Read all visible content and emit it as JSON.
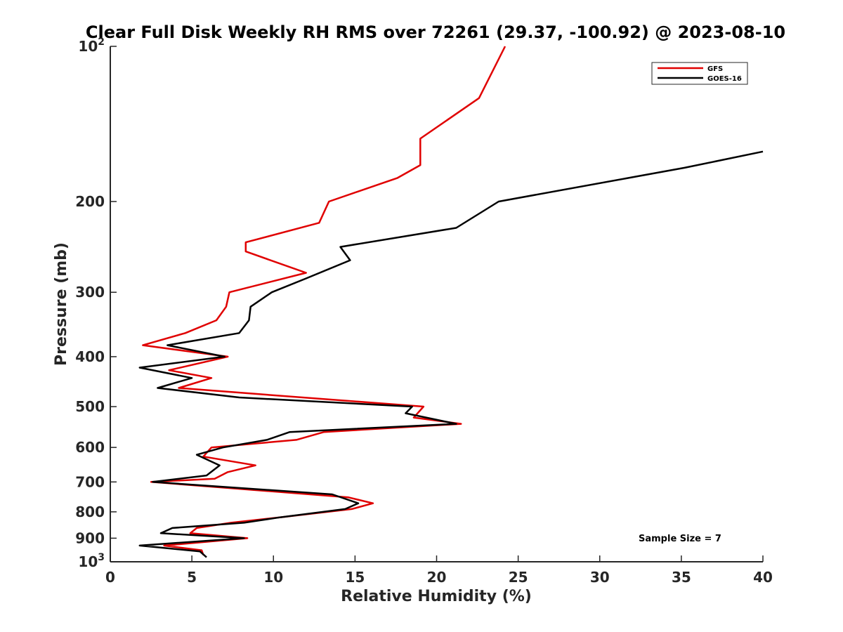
{
  "chart_data": {
    "type": "line",
    "title": "Clear Full Disk Weekly RH RMS over 72261 (29.37, -100.92) @ 2023-08-10",
    "xlabel": "Relative Humidity (%)",
    "ylabel": "Pressure (mb)",
    "xlim": [
      0,
      40
    ],
    "ylim": [
      100,
      1000
    ],
    "yscale": "log",
    "y_reversed": true,
    "grid": false,
    "legend_position": "top-right",
    "x_ticks": [
      "0",
      "5",
      "10",
      "15",
      "20",
      "25",
      "30",
      "35",
      "40"
    ],
    "y_ticks": [
      {
        "value": 100,
        "base": "10",
        "exp": "2"
      },
      {
        "value": 200,
        "label": "200"
      },
      {
        "value": 300,
        "label": "300"
      },
      {
        "value": 400,
        "label": "400"
      },
      {
        "value": 500,
        "label": "500"
      },
      {
        "value": 600,
        "label": "600"
      },
      {
        "value": 700,
        "label": "700"
      },
      {
        "value": 800,
        "label": "800"
      },
      {
        "value": 900,
        "label": "900"
      },
      {
        "value": 1000,
        "base": "10",
        "exp": "3"
      }
    ],
    "annotation": "Sample Size = 7",
    "series": [
      {
        "name": "GFS",
        "color": "#e00000",
        "points": [
          [
            24.2,
            100
          ],
          [
            22.6,
            126
          ],
          [
            19.0,
            151
          ],
          [
            19.0,
            170
          ],
          [
            17.6,
            180
          ],
          [
            13.4,
            200
          ],
          [
            12.8,
            220
          ],
          [
            8.3,
            240
          ],
          [
            8.3,
            250
          ],
          [
            12.0,
            275
          ],
          [
            7.3,
            300
          ],
          [
            7.1,
            320
          ],
          [
            6.5,
            340
          ],
          [
            4.6,
            360
          ],
          [
            2.0,
            380
          ],
          [
            7.2,
            400
          ],
          [
            3.6,
            425
          ],
          [
            6.2,
            440
          ],
          [
            4.2,
            460
          ],
          [
            8.0,
            470
          ],
          [
            19.2,
            500
          ],
          [
            18.6,
            525
          ],
          [
            21.5,
            540
          ],
          [
            13.1,
            560
          ],
          [
            11.4,
            580
          ],
          [
            6.2,
            600
          ],
          [
            5.7,
            625
          ],
          [
            8.9,
            650
          ],
          [
            7.2,
            670
          ],
          [
            6.4,
            690
          ],
          [
            2.5,
            700
          ],
          [
            14.6,
            750
          ],
          [
            16.1,
            770
          ],
          [
            14.8,
            790
          ],
          [
            10.4,
            820
          ],
          [
            7.4,
            840
          ],
          [
            5.3,
            860
          ],
          [
            4.9,
            880
          ],
          [
            8.4,
            900
          ],
          [
            3.3,
            930
          ],
          [
            5.6,
            950
          ],
          [
            5.7,
            970
          ]
        ]
      },
      {
        "name": "GOES-16",
        "color": "#000000",
        "points": [
          [
            40.0,
            160
          ],
          [
            35.2,
            172
          ],
          [
            23.8,
            200
          ],
          [
            21.2,
            225
          ],
          [
            14.1,
            245
          ],
          [
            14.7,
            260
          ],
          [
            12.0,
            282
          ],
          [
            9.9,
            300
          ],
          [
            8.6,
            320
          ],
          [
            8.5,
            340
          ],
          [
            7.9,
            360
          ],
          [
            3.5,
            380
          ],
          [
            7.0,
            400
          ],
          [
            1.8,
            420
          ],
          [
            5.0,
            440
          ],
          [
            2.9,
            460
          ],
          [
            7.9,
            480
          ],
          [
            18.5,
            500
          ],
          [
            18.1,
            515
          ],
          [
            21.2,
            540
          ],
          [
            11.0,
            560
          ],
          [
            9.6,
            580
          ],
          [
            6.9,
            600
          ],
          [
            5.3,
            620
          ],
          [
            6.7,
            650
          ],
          [
            5.9,
            680
          ],
          [
            2.6,
            700
          ],
          [
            13.6,
            740
          ],
          [
            15.2,
            770
          ],
          [
            14.4,
            790
          ],
          [
            10.4,
            820
          ],
          [
            8.2,
            840
          ],
          [
            3.8,
            860
          ],
          [
            3.1,
            880
          ],
          [
            8.2,
            900
          ],
          [
            1.8,
            930
          ],
          [
            5.5,
            955
          ],
          [
            5.9,
            980
          ]
        ]
      }
    ]
  }
}
